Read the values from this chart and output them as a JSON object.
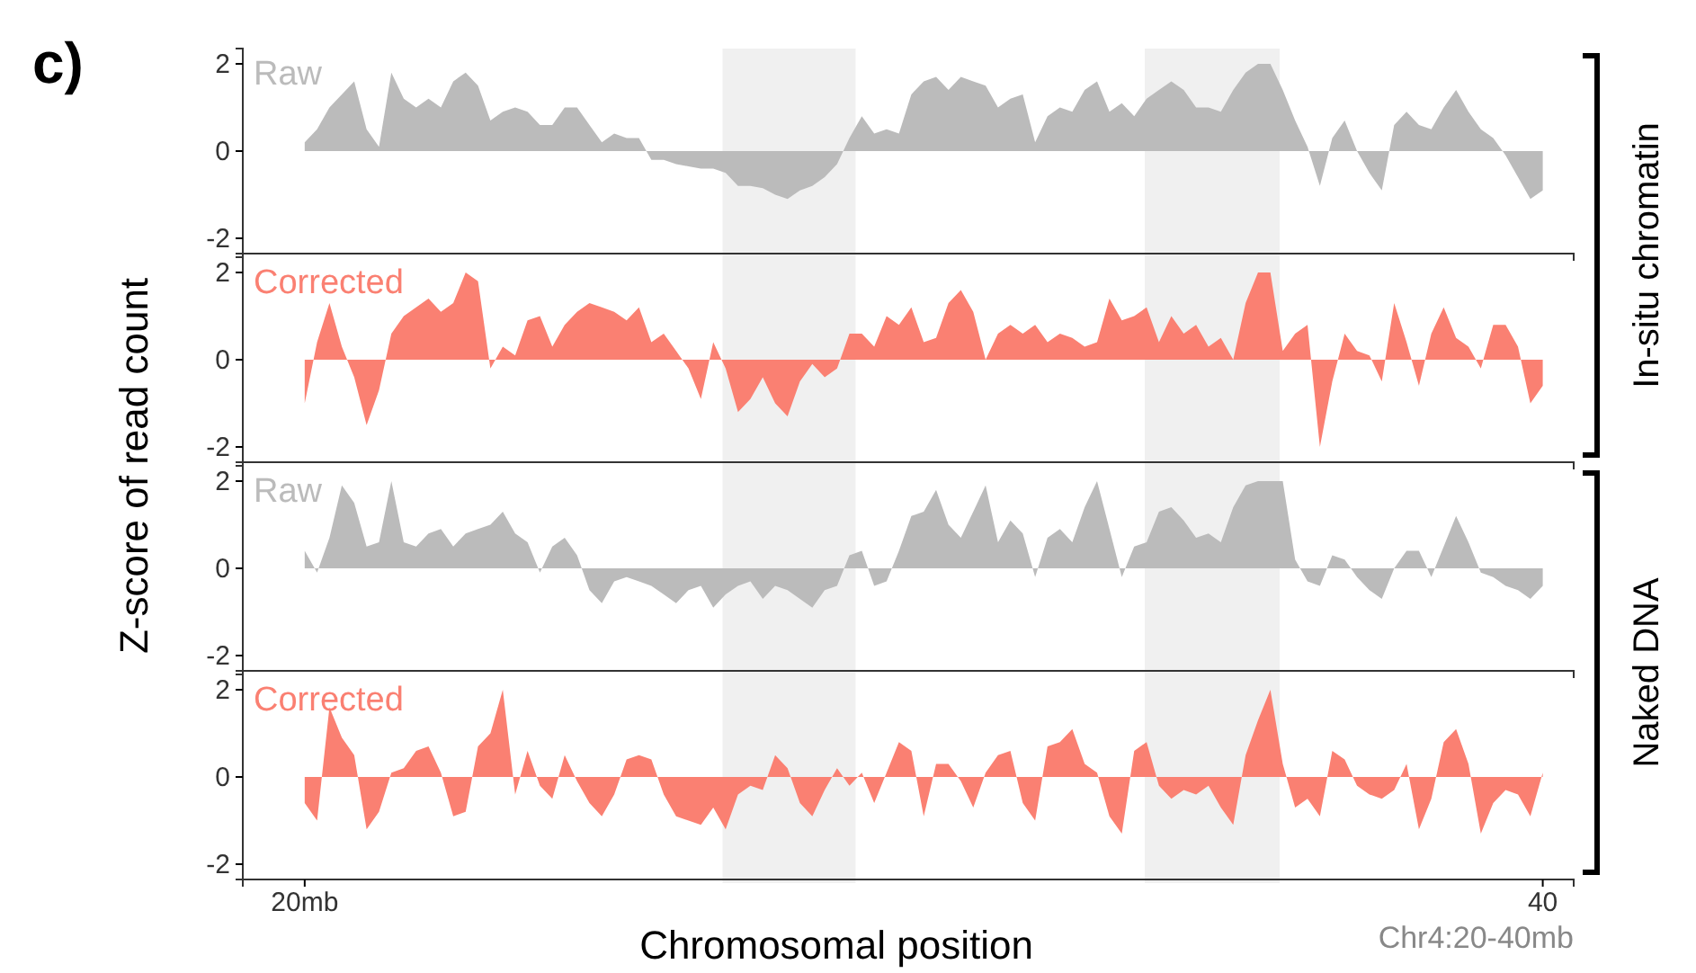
{
  "chart_data": [
    {
      "type": "area",
      "ylabel": "Z-score of read count",
      "annotations": [
        "c)"
      ],
      "tick_labels": "y",
      "x": [
        20,
        20.2,
        20.4,
        20.6,
        20.8,
        21,
        21.2,
        21.4,
        21.6,
        21.8,
        22,
        22.2,
        22.4,
        22.6,
        22.8,
        23,
        23.2,
        23.4,
        23.6,
        23.8,
        24,
        24.2,
        24.4,
        24.6,
        24.8,
        25,
        25.2,
        25.4,
        25.6,
        25.8,
        26,
        26.2,
        26.4,
        26.6,
        26.8,
        27,
        27.2,
        27.4,
        27.6,
        27.8,
        28,
        28.2,
        28.4,
        28.6,
        28.8,
        29,
        29.2,
        29.4,
        29.6,
        29.8,
        30,
        30.2,
        30.4,
        30.6,
        30.8,
        31,
        31.2,
        31.4,
        31.6,
        31.8,
        32,
        32.2,
        32.4,
        32.6,
        32.8,
        33,
        33.2,
        33.4,
        33.6,
        33.8,
        34,
        34.2,
        34.4,
        34.6,
        34.8,
        35,
        35.2,
        35.4,
        35.6,
        35.8,
        36,
        36.2,
        36.4,
        36.6,
        36.8,
        37,
        37.2,
        37.4,
        37.6,
        37.8,
        38,
        38.2,
        38.4,
        38.6,
        38.8,
        39,
        39.2,
        39.4,
        39.6,
        39.8,
        40
      ],
      "xlim": [
        19,
        40.5
      ],
      "ylim": [
        -2.35,
        2.35
      ],
      "yticks": [
        -2,
        0,
        2
      ],
      "bands": [
        {
          "axis": "x",
          "from": 26.75,
          "to": 28.9,
          "color": "#f0f0f0"
        },
        {
          "axis": "x",
          "from": 33.57,
          "to": 35.75,
          "color": "#f0f0f0"
        }
      ],
      "series": [
        {
          "name": "Raw",
          "color": "#bbbbbb",
          "values": [
            0.2,
            0.5,
            1.0,
            1.3,
            1.6,
            0.5,
            0.1,
            1.8,
            1.2,
            1.0,
            1.2,
            1.0,
            1.6,
            1.8,
            1.5,
            0.7,
            0.9,
            1.0,
            0.9,
            0.6,
            0.6,
            1.0,
            1.0,
            0.6,
            0.2,
            0.4,
            0.3,
            0.3,
            -0.2,
            -0.2,
            -0.3,
            -0.35,
            -0.4,
            -0.4,
            -0.5,
            -0.8,
            -0.8,
            -0.85,
            -1.0,
            -1.1,
            -0.9,
            -0.8,
            -0.6,
            -0.3,
            0.3,
            0.8,
            0.4,
            0.5,
            0.4,
            1.3,
            1.6,
            1.7,
            1.4,
            1.7,
            1.6,
            1.5,
            1.0,
            1.2,
            1.3,
            0.2,
            0.8,
            1.0,
            0.9,
            1.4,
            1.6,
            0.9,
            1.1,
            0.8,
            1.2,
            1.4,
            1.6,
            1.4,
            1.0,
            1.0,
            0.9,
            1.4,
            1.8,
            2.0,
            2.0,
            1.4,
            0.7,
            0.1,
            -0.8,
            0.3,
            0.7,
            0.0,
            -0.5,
            -0.9,
            0.6,
            0.9,
            0.6,
            0.5,
            1.0,
            1.4,
            0.9,
            0.5,
            0.3,
            -0.1,
            -0.6,
            -1.1,
            -0.9
          ]
        }
      ]
    },
    {
      "type": "area",
      "annotations": [
        "In-situ chromatin"
      ],
      "tick_labels": "y",
      "x": [
        20,
        20.2,
        20.4,
        20.6,
        20.8,
        21,
        21.2,
        21.4,
        21.6,
        21.8,
        22,
        22.2,
        22.4,
        22.6,
        22.8,
        23,
        23.2,
        23.4,
        23.6,
        23.8,
        24,
        24.2,
        24.4,
        24.6,
        24.8,
        25,
        25.2,
        25.4,
        25.6,
        25.8,
        26,
        26.2,
        26.4,
        26.6,
        26.8,
        27,
        27.2,
        27.4,
        27.6,
        27.8,
        28,
        28.2,
        28.4,
        28.6,
        28.8,
        29,
        29.2,
        29.4,
        29.6,
        29.8,
        30,
        30.2,
        30.4,
        30.6,
        30.8,
        31,
        31.2,
        31.4,
        31.6,
        31.8,
        32,
        32.2,
        32.4,
        32.6,
        32.8,
        33,
        33.2,
        33.4,
        33.6,
        33.8,
        34,
        34.2,
        34.4,
        34.6,
        34.8,
        35,
        35.2,
        35.4,
        35.6,
        35.8,
        36,
        36.2,
        36.4,
        36.6,
        36.8,
        37,
        37.2,
        37.4,
        37.6,
        37.8,
        38,
        38.2,
        38.4,
        38.6,
        38.8,
        39,
        39.2,
        39.4,
        39.6,
        39.8,
        40
      ],
      "xlim": [
        19,
        40.5
      ],
      "ylim": [
        -2.35,
        2.35
      ],
      "yticks": [
        -2,
        0,
        2
      ],
      "bands": [
        {
          "axis": "x",
          "from": 26.75,
          "to": 28.9,
          "color": "#f0f0f0"
        },
        {
          "axis": "x",
          "from": 33.57,
          "to": 35.75,
          "color": "#f0f0f0"
        }
      ],
      "series": [
        {
          "name": "Corrected",
          "color": "#fa8072",
          "values": [
            -1.0,
            0.4,
            1.3,
            0.3,
            -0.4,
            -1.5,
            -0.7,
            0.6,
            1.0,
            1.2,
            1.4,
            1.1,
            1.3,
            2.0,
            1.8,
            -0.2,
            0.3,
            0.1,
            0.9,
            1.0,
            0.3,
            0.8,
            1.1,
            1.3,
            1.2,
            1.1,
            0.9,
            1.2,
            0.4,
            0.6,
            0.2,
            -0.2,
            -0.9,
            0.4,
            -0.2,
            -1.2,
            -0.9,
            -0.4,
            -1.0,
            -1.3,
            -0.5,
            -0.1,
            -0.4,
            -0.2,
            0.6,
            0.6,
            0.3,
            1.0,
            0.8,
            1.2,
            0.4,
            0.5,
            1.3,
            1.6,
            1.1,
            0.0,
            0.6,
            0.8,
            0.6,
            0.8,
            0.4,
            0.6,
            0.5,
            0.3,
            0.4,
            1.4,
            0.9,
            1.0,
            1.2,
            0.4,
            1.0,
            0.6,
            0.8,
            0.3,
            0.5,
            0.0,
            1.3,
            2.0,
            2.0,
            0.2,
            0.6,
            0.8,
            -2.0,
            -0.5,
            0.6,
            0.2,
            0.1,
            -0.5,
            1.3,
            0.4,
            -0.6,
            0.6,
            1.2,
            0.5,
            0.3,
            -0.2,
            0.8,
            0.8,
            0.3,
            -1.0,
            -0.6
          ]
        }
      ]
    },
    {
      "type": "area",
      "tick_labels": "y",
      "x": [
        20,
        20.2,
        20.4,
        20.6,
        20.8,
        21,
        21.2,
        21.4,
        21.6,
        21.8,
        22,
        22.2,
        22.4,
        22.6,
        22.8,
        23,
        23.2,
        23.4,
        23.6,
        23.8,
        24,
        24.2,
        24.4,
        24.6,
        24.8,
        25,
        25.2,
        25.4,
        25.6,
        25.8,
        26,
        26.2,
        26.4,
        26.6,
        26.8,
        27,
        27.2,
        27.4,
        27.6,
        27.8,
        28,
        28.2,
        28.4,
        28.6,
        28.8,
        29,
        29.2,
        29.4,
        29.6,
        29.8,
        30,
        30.2,
        30.4,
        30.6,
        30.8,
        31,
        31.2,
        31.4,
        31.6,
        31.8,
        32,
        32.2,
        32.4,
        32.6,
        32.8,
        33,
        33.2,
        33.4,
        33.6,
        33.8,
        34,
        34.2,
        34.4,
        34.6,
        34.8,
        35,
        35.2,
        35.4,
        35.6,
        35.8,
        36,
        36.2,
        36.4,
        36.6,
        36.8,
        37,
        37.2,
        37.4,
        37.6,
        37.8,
        38,
        38.2,
        38.4,
        38.6,
        38.8,
        39,
        39.2,
        39.4,
        39.6,
        39.8,
        40
      ],
      "xlim": [
        19,
        40.5
      ],
      "ylim": [
        -2.35,
        2.35
      ],
      "yticks": [
        -2,
        0,
        2
      ],
      "bands": [
        {
          "axis": "x",
          "from": 26.75,
          "to": 28.9,
          "color": "#f0f0f0"
        },
        {
          "axis": "x",
          "from": 33.57,
          "to": 35.75,
          "color": "#f0f0f0"
        }
      ],
      "series": [
        {
          "name": "Raw",
          "color": "#bbbbbb",
          "values": [
            0.4,
            -0.1,
            0.7,
            1.9,
            1.5,
            0.5,
            0.6,
            2.0,
            0.6,
            0.5,
            0.8,
            0.9,
            0.5,
            0.8,
            0.9,
            1.0,
            1.3,
            0.8,
            0.6,
            -0.1,
            0.5,
            0.7,
            0.3,
            -0.5,
            -0.8,
            -0.3,
            -0.2,
            -0.3,
            -0.4,
            -0.6,
            -0.8,
            -0.5,
            -0.4,
            -0.9,
            -0.6,
            -0.4,
            -0.3,
            -0.7,
            -0.4,
            -0.5,
            -0.7,
            -0.9,
            -0.5,
            -0.4,
            0.3,
            0.4,
            -0.4,
            -0.3,
            0.4,
            1.2,
            1.3,
            1.8,
            1.0,
            0.7,
            1.3,
            1.9,
            0.6,
            1.1,
            0.8,
            -0.2,
            0.7,
            0.9,
            0.6,
            1.4,
            2.0,
            0.9,
            -0.2,
            0.5,
            0.6,
            1.3,
            1.4,
            1.1,
            0.7,
            0.8,
            0.6,
            1.4,
            1.9,
            2.0,
            2.0,
            2.0,
            0.2,
            -0.3,
            -0.4,
            0.3,
            0.2,
            -0.2,
            -0.5,
            -0.7,
            0.0,
            0.4,
            0.4,
            -0.2,
            0.5,
            1.2,
            0.6,
            -0.1,
            -0.2,
            -0.4,
            -0.5,
            -0.7,
            -0.4
          ]
        }
      ]
    },
    {
      "type": "area",
      "xlabel": "Chromosomal position",
      "annotations": [
        "Naked DNA",
        "Chr4:20-40mb"
      ],
      "x": [
        20,
        20.2,
        20.4,
        20.6,
        20.8,
        21,
        21.2,
        21.4,
        21.6,
        21.8,
        22,
        22.2,
        22.4,
        22.6,
        22.8,
        23,
        23.2,
        23.4,
        23.6,
        23.8,
        24,
        24.2,
        24.4,
        24.6,
        24.8,
        25,
        25.2,
        25.4,
        25.6,
        25.8,
        26,
        26.2,
        26.4,
        26.6,
        26.8,
        27,
        27.2,
        27.4,
        27.6,
        27.8,
        28,
        28.2,
        28.4,
        28.6,
        28.8,
        29,
        29.2,
        29.4,
        29.6,
        29.8,
        30,
        30.2,
        30.4,
        30.6,
        30.8,
        31,
        31.2,
        31.4,
        31.6,
        31.8,
        32,
        32.2,
        32.4,
        32.6,
        32.8,
        33,
        33.2,
        33.4,
        33.6,
        33.8,
        34,
        34.2,
        34.4,
        34.6,
        34.8,
        35,
        35.2,
        35.4,
        35.6,
        35.8,
        36,
        36.2,
        36.4,
        36.6,
        36.8,
        37,
        37.2,
        37.4,
        37.6,
        37.8,
        38,
        38.2,
        38.4,
        38.6,
        38.8,
        39,
        39.2,
        39.4,
        39.6,
        39.8,
        40
      ],
      "xlim": [
        19,
        40.5
      ],
      "xticks": [
        {
          "value": 20,
          "label": "20mb"
        },
        40
      ],
      "ylim": [
        -2.35,
        2.35
      ],
      "yticks": [
        -2,
        0,
        2
      ],
      "bands": [
        {
          "axis": "x",
          "from": 26.75,
          "to": 28.9,
          "color": "#f0f0f0"
        },
        {
          "axis": "x",
          "from": 33.57,
          "to": 35.75,
          "color": "#f0f0f0"
        }
      ],
      "series": [
        {
          "name": "Corrected",
          "color": "#fa8072",
          "values": [
            -0.6,
            -1.0,
            1.6,
            0.9,
            0.5,
            -1.2,
            -0.8,
            0.1,
            0.2,
            0.6,
            0.7,
            0.1,
            -0.9,
            -0.8,
            0.7,
            1.0,
            2.0,
            -0.4,
            0.6,
            -0.2,
            -0.5,
            0.5,
            -0.1,
            -0.6,
            -0.9,
            -0.4,
            0.4,
            0.5,
            0.4,
            -0.4,
            -0.9,
            -1.0,
            -1.1,
            -0.7,
            -1.2,
            -0.4,
            -0.2,
            -0.3,
            0.5,
            0.2,
            -0.6,
            -0.9,
            -0.3,
            0.2,
            -0.2,
            0.1,
            -0.6,
            0.1,
            0.8,
            0.6,
            -0.9,
            0.3,
            0.3,
            -0.1,
            -0.7,
            0.1,
            0.5,
            0.6,
            -0.6,
            -1.0,
            0.7,
            0.8,
            1.1,
            0.3,
            0.1,
            -0.9,
            -1.3,
            0.6,
            0.8,
            -0.2,
            -0.5,
            -0.3,
            -0.4,
            -0.2,
            -0.7,
            -1.1,
            0.5,
            1.3,
            2.0,
            0.3,
            -0.7,
            -0.5,
            -0.9,
            0.6,
            0.4,
            -0.2,
            -0.4,
            -0.5,
            -0.3,
            0.3,
            -1.2,
            -0.5,
            0.8,
            1.1,
            0.3,
            -1.3,
            -0.6,
            -0.3,
            -0.4,
            -0.9,
            0.1
          ]
        }
      ]
    }
  ]
}
